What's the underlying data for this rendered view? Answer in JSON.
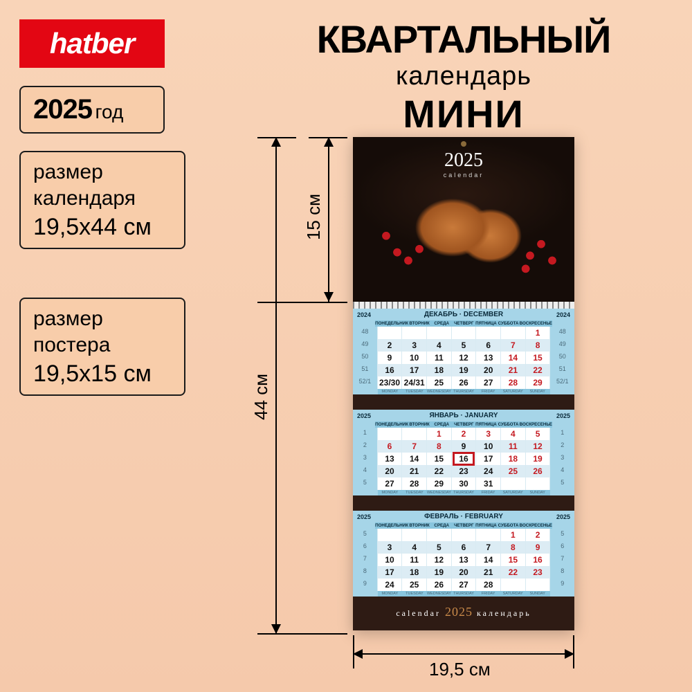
{
  "brand": "hatber",
  "title": {
    "line1": "КВАРТАЛЬНЫЙ",
    "line2": "календарь",
    "line3": "МИНИ"
  },
  "year_box": {
    "year": "2025",
    "suffix": "год"
  },
  "size_calendar": {
    "label1": "размер",
    "label2": "календаря",
    "value": "19,5х44 см"
  },
  "size_poster": {
    "label1": "размер",
    "label2": "постера",
    "value": "19,5х15 см"
  },
  "poster": {
    "year": "2025",
    "sub": "calendar"
  },
  "dimensions": {
    "poster_h": "15 см",
    "total_h": "44 см",
    "width": "19,5 см"
  },
  "colors": {
    "brand_bg": "#e30613",
    "box_border": "#1a1a1a",
    "box_bg": "#f8cdaa",
    "cal_bg": "#2e1b14",
    "header_bg": "#a6d5e8",
    "weekend": "#c41920"
  },
  "months": [
    {
      "title": "ДЕКАБРЬ · DECEMBER",
      "year": "2024",
      "dow": [
        "",
        "ПОНЕДЕЛЬНИК",
        "ВТОРНИК",
        "СРЕДА",
        "ЧЕТВЕРГ",
        "ПЯТНИЦА",
        "СУББОТА",
        "ВОСКРЕСЕНЬЕ",
        ""
      ],
      "eng": [
        "",
        "MONDAY",
        "TUESDAY",
        "WEDNESDAY",
        "THURSDAY",
        "FRIDAY",
        "SATURDAY",
        "SUNDAY",
        ""
      ],
      "rows": [
        [
          "48",
          "",
          "",
          "",
          "",
          "",
          "",
          "1",
          "48"
        ],
        [
          "49",
          "2",
          "3",
          "4",
          "5",
          "6",
          "7",
          "8",
          "49"
        ],
        [
          "50",
          "9",
          "10",
          "11",
          "12",
          "13",
          "14",
          "15",
          "50"
        ],
        [
          "51",
          "16",
          "17",
          "18",
          "19",
          "20",
          "21",
          "22",
          "51"
        ],
        [
          "52/1",
          "23/30",
          "24/31",
          "25",
          "26",
          "27",
          "28",
          "29",
          "52/1"
        ]
      ],
      "red_cols": [
        7
      ],
      "weekend_cells": [
        [
          0,
          7
        ],
        [
          1,
          6
        ],
        [
          1,
          7
        ],
        [
          2,
          6
        ],
        [
          2,
          7
        ],
        [
          3,
          6
        ],
        [
          3,
          7
        ],
        [
          4,
          6
        ],
        [
          4,
          7
        ]
      ],
      "dim_cells": [
        [
          0,
          1
        ],
        [
          0,
          2
        ],
        [
          0,
          3
        ],
        [
          0,
          4
        ],
        [
          0,
          5
        ],
        [
          0,
          6
        ]
      ]
    },
    {
      "title": "ЯНВАРЬ · JANUARY",
      "year": "2025",
      "dow": [
        "",
        "ПОНЕДЕЛЬНИК",
        "ВТОРНИК",
        "СРЕДА",
        "ЧЕТВЕРГ",
        "ПЯТНИЦА",
        "СУББОТА",
        "ВОСКРЕСЕНЬЕ",
        ""
      ],
      "eng": [
        "",
        "MONDAY",
        "TUESDAY",
        "WEDNESDAY",
        "THURSDAY",
        "FRIDAY",
        "SATURDAY",
        "SUNDAY",
        ""
      ],
      "rows": [
        [
          "1",
          "",
          "",
          "1",
          "2",
          "3",
          "4",
          "5",
          "1"
        ],
        [
          "2",
          "6",
          "7",
          "8",
          "9",
          "10",
          "11",
          "12",
          "2"
        ],
        [
          "3",
          "13",
          "14",
          "15",
          "16",
          "17",
          "18",
          "19",
          "3"
        ],
        [
          "4",
          "20",
          "21",
          "22",
          "23",
          "24",
          "25",
          "26",
          "4"
        ],
        [
          "5",
          "27",
          "28",
          "29",
          "30",
          "31",
          "",
          "",
          "5"
        ]
      ],
      "today": [
        2,
        4
      ],
      "red_cells": [
        [
          0,
          3
        ],
        [
          0,
          4
        ],
        [
          0,
          5
        ],
        [
          0,
          6
        ],
        [
          0,
          7
        ],
        [
          1,
          1
        ],
        [
          1,
          2
        ],
        [
          1,
          3
        ],
        [
          1,
          6
        ],
        [
          1,
          7
        ],
        [
          2,
          6
        ],
        [
          2,
          7
        ],
        [
          3,
          6
        ],
        [
          3,
          7
        ]
      ],
      "dim_cells": [
        [
          0,
          1
        ],
        [
          0,
          2
        ],
        [
          4,
          6
        ],
        [
          4,
          7
        ]
      ]
    },
    {
      "title": "ФЕВРАЛЬ · FEBRUARY",
      "year": "2025",
      "dow": [
        "",
        "ПОНЕДЕЛЬНИК",
        "ВТОРНИК",
        "СРЕДА",
        "ЧЕТВЕРГ",
        "ПЯТНИЦА",
        "СУББОТА",
        "ВОСКРЕСЕНЬЕ",
        ""
      ],
      "eng": [
        "",
        "MONDAY",
        "TUESDAY",
        "WEDNESDAY",
        "THURSDAY",
        "FRIDAY",
        "SATURDAY",
        "SUNDAY",
        ""
      ],
      "rows": [
        [
          "5",
          "",
          "",
          "",
          "",
          "",
          "1",
          "2",
          "5"
        ],
        [
          "6",
          "3",
          "4",
          "5",
          "6",
          "7",
          "8",
          "9",
          "6"
        ],
        [
          "7",
          "10",
          "11",
          "12",
          "13",
          "14",
          "15",
          "16",
          "7"
        ],
        [
          "8",
          "17",
          "18",
          "19",
          "20",
          "21",
          "22",
          "23",
          "8"
        ],
        [
          "9",
          "24",
          "25",
          "26",
          "27",
          "28",
          "",
          "",
          "9"
        ]
      ],
      "red_cells": [
        [
          0,
          6
        ],
        [
          0,
          7
        ],
        [
          1,
          6
        ],
        [
          1,
          7
        ],
        [
          2,
          6
        ],
        [
          2,
          7
        ],
        [
          3,
          6
        ],
        [
          3,
          7
        ]
      ],
      "dim_cells": [
        [
          0,
          1
        ],
        [
          0,
          2
        ],
        [
          0,
          3
        ],
        [
          0,
          4
        ],
        [
          0,
          5
        ],
        [
          4,
          6
        ],
        [
          4,
          7
        ]
      ]
    }
  ],
  "footer": {
    "left": "calendar",
    "year": "2025",
    "right": "календарь"
  }
}
